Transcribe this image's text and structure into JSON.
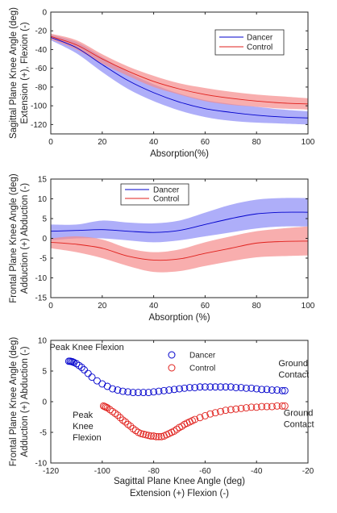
{
  "colors": {
    "dancer": "#0000cc",
    "control": "#e0201c",
    "dancer_band": "#8c8cf7",
    "control_band": "#f58c8c",
    "axis": "#262626"
  },
  "chart_data": [
    {
      "type": "line",
      "ylabel_line1": "Sagittal Plane Knee Angle (deg)",
      "ylabel_line2": "Extension (+), Flexion (-)",
      "xlabel": "Absorption(%)",
      "xlim": [
        0,
        100
      ],
      "ylim": [
        -130,
        0
      ],
      "xticks": [
        0,
        20,
        40,
        60,
        80,
        100
      ],
      "yticks": [
        0,
        -20,
        -40,
        -60,
        -80,
        -100,
        -120
      ],
      "legend": {
        "position": "top-right",
        "entries": [
          "Dancer",
          "Control"
        ]
      },
      "x": [
        0,
        10,
        20,
        30,
        40,
        50,
        60,
        70,
        80,
        90,
        100
      ],
      "series": [
        {
          "name": "Dancer",
          "mean": [
            -27,
            -38,
            -56,
            -73,
            -86,
            -96,
            -103,
            -107,
            -110,
            -112,
            -113
          ],
          "lower": [
            -30,
            -44,
            -64,
            -82,
            -95,
            -105,
            -112,
            -116,
            -118,
            -119,
            -120
          ],
          "upper": [
            -24,
            -32,
            -48,
            -64,
            -77,
            -87,
            -94,
            -98,
            -101,
            -104,
            -106
          ]
        },
        {
          "name": "Control",
          "mean": [
            -26,
            -35,
            -50,
            -63,
            -74,
            -82,
            -88,
            -92,
            -95,
            -97,
            -98
          ],
          "lower": [
            -29,
            -40,
            -55,
            -68,
            -80,
            -88,
            -95,
            -99,
            -101,
            -103,
            -104
          ],
          "upper": [
            -23,
            -30,
            -45,
            -58,
            -68,
            -76,
            -81,
            -85,
            -88,
            -90,
            -92
          ]
        }
      ]
    },
    {
      "type": "line",
      "ylabel_line1": "Frontal Plane Knee Angle (deg)",
      "ylabel_line2": "Adduction (+) Abduction (-)",
      "xlabel": "Absorption (%)",
      "xlim": [
        0,
        100
      ],
      "ylim": [
        -15,
        15
      ],
      "xticks": [
        0,
        20,
        40,
        60,
        80,
        100
      ],
      "yticks": [
        15,
        10,
        5,
        0,
        -5,
        -10,
        -15
      ],
      "legend": {
        "position": "top-left",
        "entries": [
          "Dancer",
          "Control"
        ]
      },
      "x": [
        0,
        10,
        20,
        30,
        40,
        50,
        60,
        70,
        80,
        90,
        100
      ],
      "series": [
        {
          "name": "Dancer",
          "mean": [
            1.8,
            2.0,
            2.2,
            1.8,
            1.5,
            2.0,
            3.5,
            5.0,
            6.2,
            6.6,
            6.6
          ],
          "lower": [
            -0.5,
            0.0,
            0.0,
            -0.5,
            -1.0,
            -0.5,
            0.5,
            1.5,
            2.5,
            3.0,
            3.0
          ],
          "upper": [
            3.5,
            3.5,
            4.5,
            4.0,
            3.8,
            4.5,
            6.5,
            8.5,
            9.8,
            10.2,
            10.2
          ]
        },
        {
          "name": "Control",
          "mean": [
            -1.0,
            -1.5,
            -2.5,
            -4.5,
            -5.5,
            -5.2,
            -3.8,
            -2.5,
            -1.2,
            -0.8,
            -0.7
          ],
          "lower": [
            -2.5,
            -3.5,
            -5.0,
            -7.0,
            -8.5,
            -8.3,
            -7.0,
            -5.8,
            -4.8,
            -4.5,
            -4.3
          ],
          "upper": [
            0.0,
            0.5,
            -0.3,
            -2.5,
            -3.5,
            -2.8,
            -1.0,
            0.5,
            1.8,
            2.5,
            3.0
          ]
        }
      ]
    },
    {
      "type": "scatter",
      "ylabel_line1": "Frontal Plane Knee Angle (deg)",
      "ylabel_line2": "Adduction (+) Abduction (-)",
      "xlabel_line1": "Sagittal Plane Knee Angle (deg)",
      "xlabel_line2": "Extension (+) Flexion (-)",
      "xlim": [
        -120,
        -20
      ],
      "ylim": [
        -10,
        10
      ],
      "xticks": [
        -120,
        -100,
        -80,
        -60,
        -40,
        -20
      ],
      "yticks": [
        10,
        5,
        0,
        -5,
        -10
      ],
      "legend": {
        "position": "top-center",
        "entries": [
          "Dancer",
          "Control"
        ]
      },
      "series": [
        {
          "name": "Dancer",
          "points": [
            [
              -113,
              6.6
            ],
            [
              -112.5,
              6.6
            ],
            [
              -112,
              6.55
            ],
            [
              -111.5,
              6.5
            ],
            [
              -111,
              6.4
            ],
            [
              -110,
              6.2
            ],
            [
              -109,
              5.9
            ],
            [
              -108,
              5.6
            ],
            [
              -107,
              5.2
            ],
            [
              -105.5,
              4.6
            ],
            [
              -104,
              4.0
            ],
            [
              -102,
              3.4
            ],
            [
              -100,
              2.9
            ],
            [
              -98,
              2.5
            ],
            [
              -96,
              2.1
            ],
            [
              -94,
              1.9
            ],
            [
              -92,
              1.7
            ],
            [
              -90,
              1.6
            ],
            [
              -88,
              1.5
            ],
            [
              -86,
              1.5
            ],
            [
              -84,
              1.5
            ],
            [
              -82,
              1.5
            ],
            [
              -80,
              1.6
            ],
            [
              -78,
              1.7
            ],
            [
              -76,
              1.8
            ],
            [
              -74,
              1.9
            ],
            [
              -72,
              2.0
            ],
            [
              -70,
              2.1
            ],
            [
              -68,
              2.2
            ],
            [
              -66,
              2.3
            ],
            [
              -64,
              2.3
            ],
            [
              -62,
              2.4
            ],
            [
              -60,
              2.4
            ],
            [
              -58,
              2.4
            ],
            [
              -56,
              2.4
            ],
            [
              -54,
              2.4
            ],
            [
              -52,
              2.4
            ],
            [
              -50,
              2.4
            ],
            [
              -48,
              2.3
            ],
            [
              -46,
              2.3
            ],
            [
              -44,
              2.2
            ],
            [
              -42,
              2.2
            ],
            [
              -40,
              2.1
            ],
            [
              -38,
              2.0
            ],
            [
              -36,
              2.0
            ],
            [
              -34,
              1.9
            ],
            [
              -32,
              1.9
            ],
            [
              -30,
              1.8
            ],
            [
              -29,
              1.8
            ]
          ]
        },
        {
          "name": "Control",
          "points": [
            [
              -99.5,
              -0.7
            ],
            [
              -99,
              -0.8
            ],
            [
              -98.5,
              -0.9
            ],
            [
              -98,
              -1.0
            ],
            [
              -97,
              -1.3
            ],
            [
              -96,
              -1.6
            ],
            [
              -95,
              -1.9
            ],
            [
              -94,
              -2.2
            ],
            [
              -93,
              -2.6
            ],
            [
              -92,
              -3.0
            ],
            [
              -91,
              -3.3
            ],
            [
              -90,
              -3.7
            ],
            [
              -89,
              -4.0
            ],
            [
              -88,
              -4.4
            ],
            [
              -87,
              -4.7
            ],
            [
              -86,
              -5.0
            ],
            [
              -85,
              -5.2
            ],
            [
              -84,
              -5.3
            ],
            [
              -83,
              -5.4
            ],
            [
              -82,
              -5.5
            ],
            [
              -81,
              -5.6
            ],
            [
              -80,
              -5.6
            ],
            [
              -79,
              -5.7
            ],
            [
              -78,
              -5.7
            ],
            [
              -77,
              -5.7
            ],
            [
              -76,
              -5.6
            ],
            [
              -75,
              -5.4
            ],
            [
              -74,
              -5.2
            ],
            [
              -73,
              -5.0
            ],
            [
              -72,
              -4.8
            ],
            [
              -71,
              -4.5
            ],
            [
              -70,
              -4.2
            ],
            [
              -69,
              -4.0
            ],
            [
              -68,
              -3.7
            ],
            [
              -67,
              -3.5
            ],
            [
              -66,
              -3.3
            ],
            [
              -65,
              -3.1
            ],
            [
              -64,
              -2.9
            ],
            [
              -62,
              -2.6
            ],
            [
              -60,
              -2.3
            ],
            [
              -58,
              -2.0
            ],
            [
              -56,
              -1.8
            ],
            [
              -54,
              -1.6
            ],
            [
              -52,
              -1.4
            ],
            [
              -50,
              -1.3
            ],
            [
              -48,
              -1.2
            ],
            [
              -46,
              -1.1
            ],
            [
              -44,
              -1.0
            ],
            [
              -42,
              -0.9
            ],
            [
              -40,
              -0.9
            ],
            [
              -38,
              -0.8
            ],
            [
              -36,
              -0.8
            ],
            [
              -34,
              -0.8
            ],
            [
              -32,
              -0.7
            ],
            [
              -30,
              -0.7
            ],
            [
              -29,
              -0.7
            ]
          ]
        }
      ],
      "annotations": [
        {
          "lines": [
            "Peak Knee Flexion"
          ],
          "anchor": [
            -120.5,
            8.4
          ]
        },
        {
          "lines": [
            "Ground",
            "Contact"
          ],
          "anchor": [
            -31.5,
            5.8
          ]
        },
        {
          "lines": [
            "Peak",
            "Knee",
            "Flexion"
          ],
          "anchor": [
            -111.5,
            -2.6
          ]
        },
        {
          "lines": [
            "Ground",
            "Contact"
          ],
          "anchor": [
            -29.5,
            -2.3
          ]
        }
      ]
    }
  ]
}
